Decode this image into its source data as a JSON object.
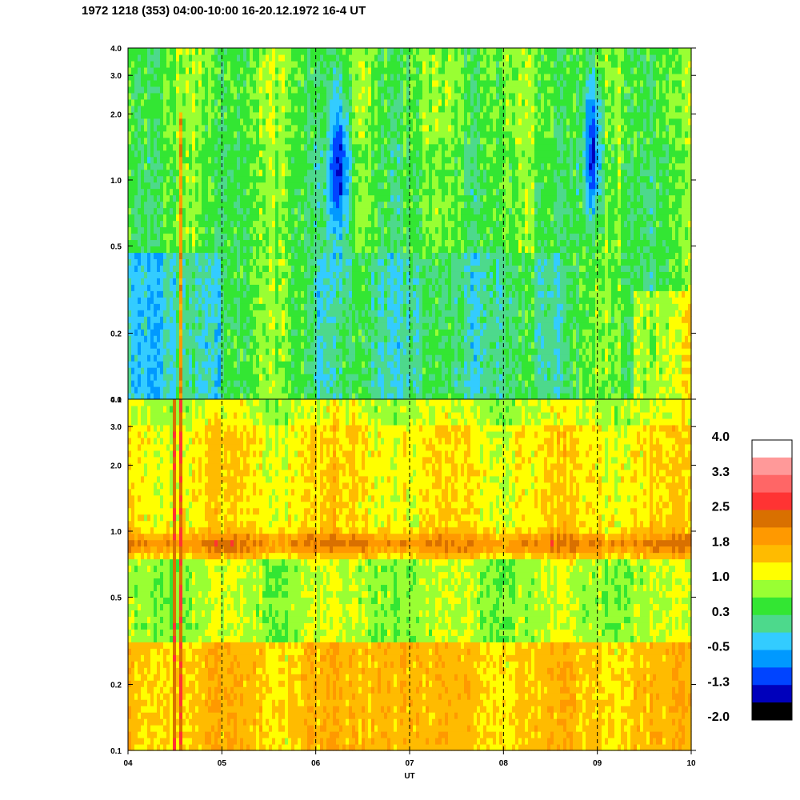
{
  "title": "1972 1218 (353) 04:00-10:00 16-20.12.1972  16-4 UT",
  "chart_data": {
    "type": "heatmap",
    "xlabel": "UT",
    "x_ticks": [
      "04",
      "05",
      "06",
      "07",
      "08",
      "09",
      "10"
    ],
    "xlim": [
      4,
      10
    ],
    "vertical_dashed_lines_at": [
      5,
      6,
      7,
      8,
      9
    ],
    "y_scale": "log",
    "panels": [
      {
        "name": "",
        "ylim": [
          0.1,
          4.0
        ],
        "y_ticks": [
          "0.1",
          "0.2",
          "0.5",
          "1.0",
          "2.0",
          "3.0",
          "4.0"
        ],
        "dominant_levels": "mostly 0.3 to 1.0 (green/cyan); deep blue (-1.3 to -2.0) patches near 06:10-06:30 and 08:50-09:05"
      },
      {
        "name": "",
        "ylim": [
          0.1,
          4.0
        ],
        "y_ticks": [
          "0.1",
          "0.2",
          "0.5",
          "1.0",
          "2.0",
          "3.0",
          "4.0"
        ],
        "dominant_levels": "mostly 1.0 to 1.8 (yellow/orange); darker orange band (~2.2) near 0.85 along whole interval"
      }
    ],
    "colorbar": {
      "labels": [
        "4.0",
        "3.3",
        "2.5",
        "1.8",
        "1.0",
        "0.3",
        "-0.5",
        "-1.3",
        "-2.0"
      ],
      "colors": [
        "#ffffff",
        "#ff9999",
        "#ff6666",
        "#ff3333",
        "#d97000",
        "#ff9900",
        "#ffbb00",
        "#ffff00",
        "#99ff33",
        "#33e633",
        "#4dd98c",
        "#33ccff",
        "#0099ff",
        "#0044ff",
        "#0000bb",
        "#000000"
      ]
    }
  }
}
